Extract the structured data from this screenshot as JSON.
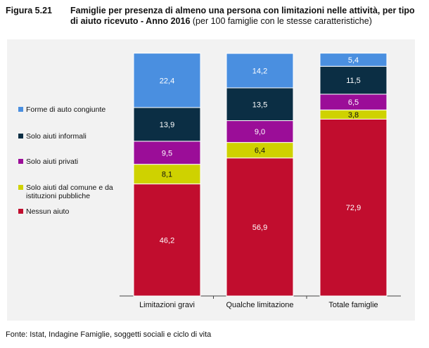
{
  "header": {
    "figure_number": "Figura 5.21",
    "title_bold": "Famiglie per presenza di almeno una persona con limitazioni nelle attività, per tipo di aiuto ricevuto - Anno 2016",
    "title_normal": " (per 100 famiglie con le stesse caratteristiche)"
  },
  "footer": {
    "source": "Fonte: Istat, Indagine Famiglie, soggetti sociali e ciclo di vita"
  },
  "chart_data": {
    "type": "bar",
    "stacked": true,
    "categories": [
      "Limitazioni gravi",
      "Qualche limitazione",
      "Totale famiglie"
    ],
    "ylim": [
      0,
      100
    ],
    "legend_position": "left",
    "series": [
      {
        "name": "Nessun aiuto",
        "color": "#c10d2e",
        "values": [
          46.2,
          56.9,
          72.9
        ],
        "labels": [
          "46,2",
          "56,9",
          "72,9"
        ]
      },
      {
        "name": "Solo aiuti dal comune e da istituzioni pubbliche",
        "color": "#cfd200",
        "values": [
          8.1,
          6.4,
          3.8
        ],
        "labels": [
          "8,1",
          "6,4",
          "3,8"
        ]
      },
      {
        "name": "Solo aiuti privati",
        "color": "#9b0d98",
        "values": [
          9.5,
          9.0,
          6.5
        ],
        "labels": [
          "9,5",
          "9,0",
          "6,5"
        ]
      },
      {
        "name": "Solo aiuti informali",
        "color": "#0b2e44",
        "values": [
          13.9,
          13.5,
          11.5
        ],
        "labels": [
          "13,9",
          "13,5",
          "11,5"
        ]
      },
      {
        "name": "Forme di auto congiunte",
        "color": "#4a8fe0",
        "values": [
          22.4,
          14.2,
          5.4
        ],
        "labels": [
          "22,4",
          "14,2",
          "5,4"
        ]
      }
    ],
    "legend_order": [
      "Forme di auto congiunte",
      "Solo aiuti informali",
      "Solo aiuti privati",
      "Solo aiuti dal comune e da istituzioni pubbliche",
      "Nessun aiuto"
    ]
  }
}
